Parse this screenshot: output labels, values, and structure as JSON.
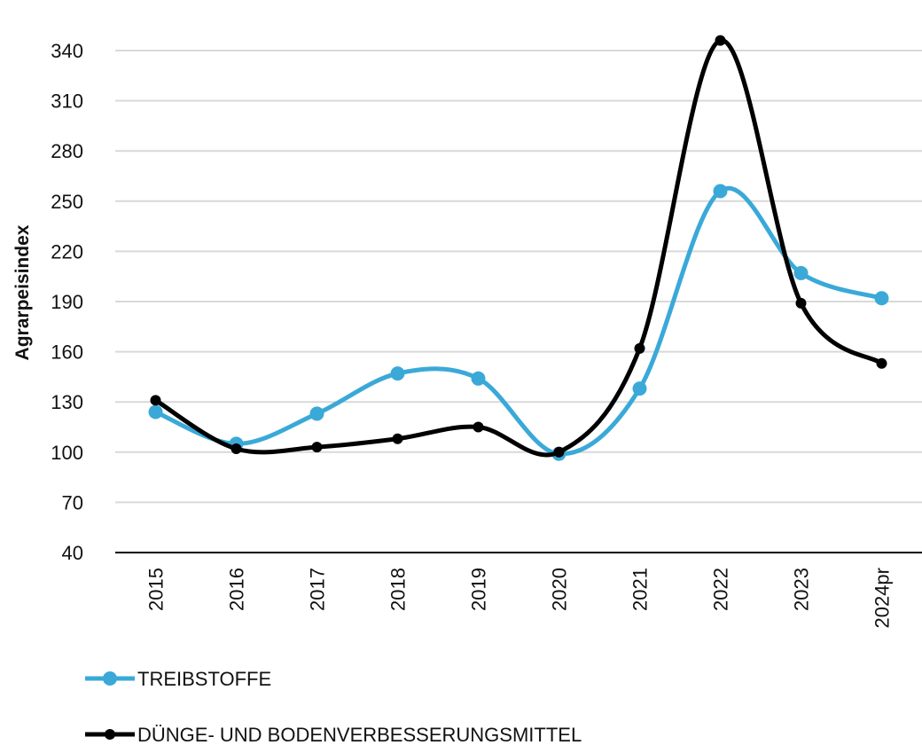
{
  "chart_data": {
    "type": "line",
    "title": "",
    "xlabel": "",
    "ylabel": "Agrarpeisindex",
    "categories": [
      "2015",
      "2016",
      "2017",
      "2018",
      "2019",
      "2020",
      "2021",
      "2022",
      "2023",
      "2024pr"
    ],
    "ylim": [
      40,
      340
    ],
    "yticks": [
      40,
      70,
      100,
      130,
      160,
      190,
      220,
      250,
      280,
      310,
      340
    ],
    "grid": "horizontal",
    "legend_position": "bottom-left",
    "series": [
      {
        "name": "TREIBSTOFFE",
        "color": "#3aa9d8",
        "values": [
          124,
          105,
          123,
          147,
          144,
          99,
          138,
          256,
          207,
          192
        ]
      },
      {
        "name": "DÜNGE- UND BODENVERBESSERUNGSMITTEL",
        "color": "#000000",
        "values": [
          131,
          102,
          103,
          108,
          115,
          100,
          162,
          346,
          189,
          153
        ]
      }
    ]
  }
}
